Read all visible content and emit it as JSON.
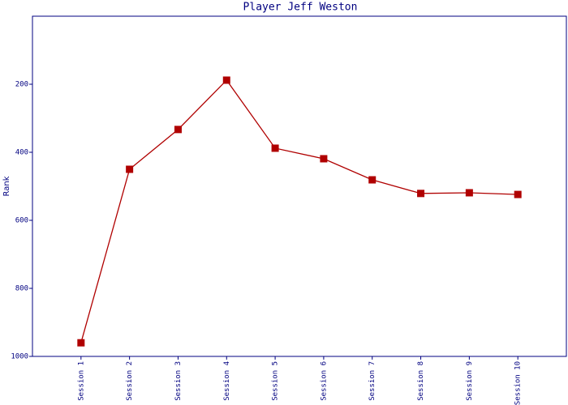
{
  "chart_data": {
    "type": "line",
    "title": "Player Jeff Weston",
    "y_label": "Rank",
    "categories": [
      "Session 1",
      "Session 2",
      "Session 3",
      "Session 4",
      "Session 5",
      "Session 6",
      "Session 7",
      "Session 8",
      "Session 9",
      "Session 10"
    ],
    "values": [
      960,
      450,
      333,
      188,
      388,
      419,
      481,
      521,
      519,
      524
    ],
    "color": "#b00000",
    "axis_color": "#000080",
    "ylim": [
      1000,
      0
    ],
    "yticks": [
      200,
      400,
      600,
      800,
      1000
    ],
    "grid": false
  }
}
